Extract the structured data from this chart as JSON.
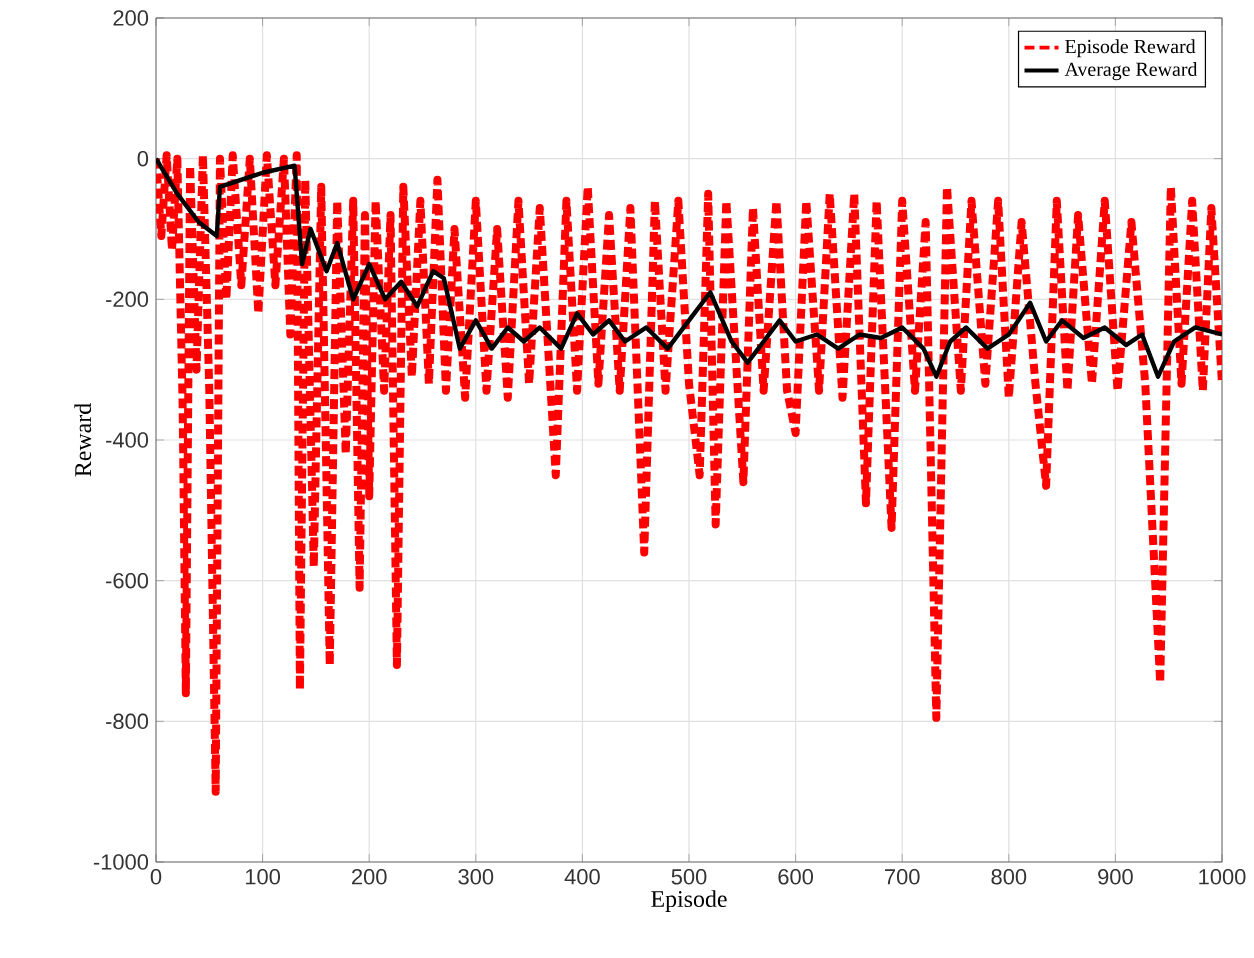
{
  "chart_data": {
    "type": "line",
    "xlabel": "Episode",
    "ylabel": "Reward",
    "xlim": [
      0,
      1000
    ],
    "xticks": [
      0,
      100,
      200,
      300,
      400,
      500,
      600,
      700,
      800,
      900,
      1000
    ],
    "ylim": [
      -1000,
      200
    ],
    "yticks": [
      -1000,
      -800,
      -600,
      -400,
      -200,
      0,
      200
    ],
    "grid": true,
    "legend": "top right",
    "series": [
      {
        "name": "Episode Reward",
        "color": "#ff0000",
        "line_style": "dashed",
        "x": [
          0,
          5,
          10,
          15,
          20,
          25,
          28,
          32,
          38,
          44,
          50,
          56,
          60,
          66,
          72,
          80,
          88,
          96,
          104,
          112,
          120,
          126,
          132,
          135,
          140,
          148,
          155,
          163,
          170,
          178,
          185,
          191,
          196,
          200,
          206,
          214,
          220,
          226,
          232,
          240,
          248,
          256,
          264,
          272,
          280,
          290,
          300,
          310,
          320,
          330,
          340,
          350,
          360,
          375,
          385,
          395,
          405,
          415,
          425,
          435,
          445,
          458,
          468,
          478,
          490,
          500,
          510,
          518,
          525,
          535,
          551,
          560,
          570,
          582,
          592,
          600,
          610,
          622,
          632,
          644,
          655,
          666,
          676,
          690,
          700,
          712,
          722,
          732,
          742,
          755,
          765,
          778,
          790,
          800,
          812,
          825,
          835,
          845,
          855,
          865,
          878,
          890,
          902,
          915,
          928,
          942,
          952,
          962,
          972,
          982,
          990,
          1000
        ],
        "values": [
          0,
          -110,
          5,
          -130,
          0,
          -350,
          -760,
          -10,
          -300,
          5,
          -330,
          -900,
          0,
          -200,
          5,
          -180,
          0,
          -220,
          5,
          -180,
          0,
          -250,
          5,
          -755,
          -30,
          -580,
          -40,
          -720,
          -60,
          -420,
          -60,
          -610,
          -80,
          -480,
          -60,
          -330,
          -80,
          -720,
          -40,
          -310,
          -60,
          -320,
          -30,
          -330,
          -100,
          -340,
          -60,
          -330,
          -100,
          -340,
          -60,
          -320,
          -70,
          -450,
          -60,
          -330,
          -40,
          -320,
          -80,
          -330,
          -70,
          -560,
          -60,
          -330,
          -60,
          -320,
          -450,
          -50,
          -520,
          -60,
          -460,
          -70,
          -330,
          -60,
          -330,
          -390,
          -60,
          -330,
          -50,
          -340,
          -50,
          -490,
          -60,
          -525,
          -60,
          -330,
          -90,
          -795,
          -40,
          -330,
          -60,
          -320,
          -60,
          -340,
          -90,
          -320,
          -465,
          -60,
          -330,
          -80,
          -320,
          -60,
          -330,
          -90,
          -320,
          -745,
          -40,
          -320,
          -60,
          -330,
          -70,
          -320
        ]
      },
      {
        "name": "Average Reward",
        "color": "#000000",
        "line_style": "solid",
        "x": [
          0,
          20,
          40,
          57,
          60,
          80,
          100,
          130,
          137,
          145,
          160,
          170,
          185,
          200,
          215,
          230,
          245,
          260,
          270,
          285,
          300,
          315,
          330,
          345,
          360,
          380,
          395,
          410,
          425,
          440,
          460,
          480,
          500,
          520,
          540,
          555,
          570,
          585,
          600,
          620,
          640,
          660,
          680,
          700,
          720,
          732,
          745,
          760,
          780,
          800,
          820,
          835,
          850,
          870,
          890,
          910,
          925,
          940,
          955,
          975,
          1000
        ],
        "values": [
          0,
          -50,
          -90,
          -110,
          -40,
          -30,
          -20,
          -10,
          -150,
          -100,
          -160,
          -120,
          -200,
          -150,
          -200,
          -175,
          -210,
          -160,
          -170,
          -270,
          -230,
          -270,
          -240,
          -260,
          -240,
          -270,
          -220,
          -250,
          -230,
          -260,
          -240,
          -270,
          -230,
          -190,
          -260,
          -290,
          -260,
          -230,
          -260,
          -250,
          -270,
          -250,
          -255,
          -240,
          -270,
          -310,
          -260,
          -240,
          -270,
          -250,
          -205,
          -260,
          -230,
          -255,
          -240,
          -265,
          -250,
          -310,
          -260,
          -240,
          -250
        ]
      }
    ]
  }
}
